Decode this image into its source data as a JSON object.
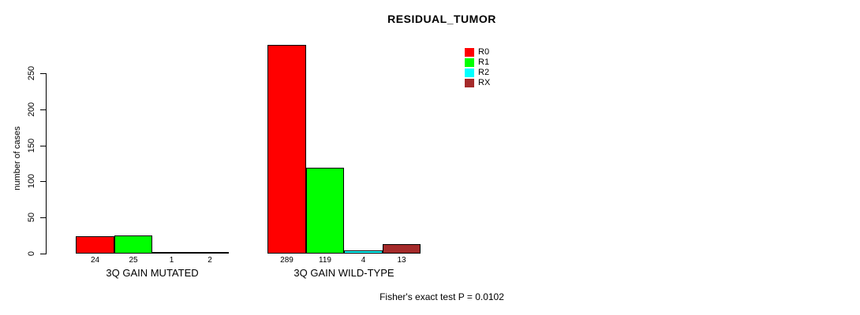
{
  "page": {
    "title": "RESIDUAL_TUMOR",
    "footer": "Fisher's exact test P = 0.0102"
  },
  "chart_data": {
    "type": "bar",
    "title": "RESIDUAL_TUMOR",
    "xlabel": "",
    "ylabel": "number of cases",
    "ylim": [
      0,
      289
    ],
    "yticks": [
      0,
      50,
      100,
      150,
      200,
      250
    ],
    "grid": false,
    "legend_position": "top-right",
    "categories": [
      "3Q GAIN MUTATED",
      "3Q GAIN WILD-TYPE"
    ],
    "series": [
      {
        "name": "R0",
        "color": "#ff0000",
        "values": [
          24,
          289
        ]
      },
      {
        "name": "R1",
        "color": "#00ff00",
        "values": [
          25,
          119
        ]
      },
      {
        "name": "R2",
        "color": "#00ffff",
        "values": [
          1,
          4
        ]
      },
      {
        "name": "RX",
        "color": "#a52a2a",
        "values": [
          2,
          13
        ]
      }
    ],
    "bar_value_labels": [
      [
        "24",
        "25",
        "1",
        "2"
      ],
      [
        "289",
        "119",
        "4",
        "13"
      ]
    ],
    "annotation": "Fisher's exact test P = 0.0102"
  }
}
